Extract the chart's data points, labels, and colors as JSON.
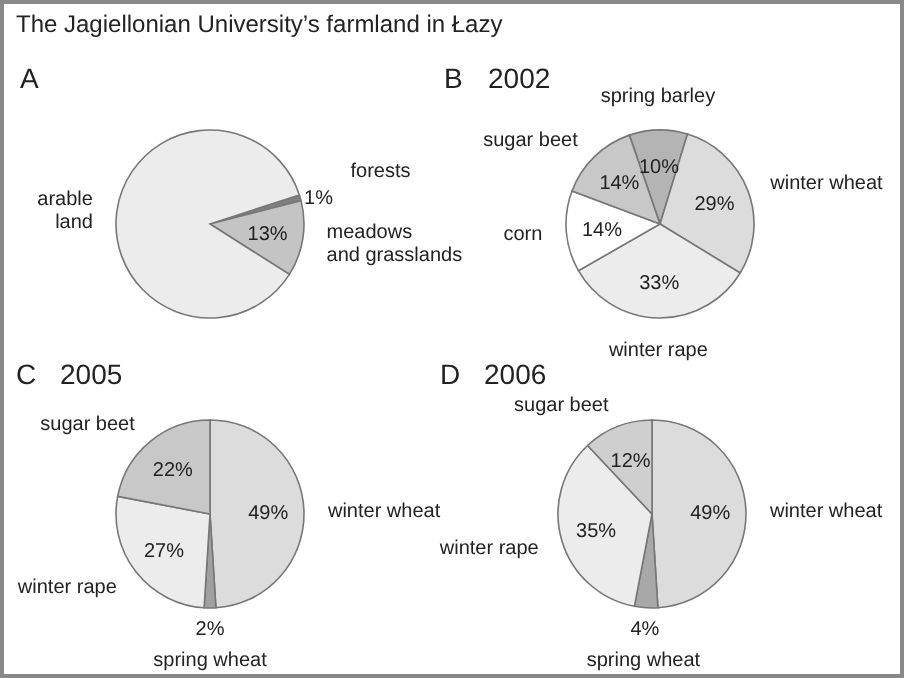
{
  "chart_data": [
    {
      "type": "pie",
      "title": "A",
      "annotations": [
        "The Jagiellonian University’s farmland  in Łazy"
      ],
      "categories": [
        "forests",
        "meadows and grasslands",
        "arable land"
      ],
      "values": [
        1,
        13,
        86
      ],
      "value_labels": [
        "1%",
        "13%",
        null
      ],
      "colors": [
        "#808080",
        "#c4c4c4",
        "#ececec"
      ]
    },
    {
      "type": "pie",
      "title": "B",
      "subtitle": "2002",
      "categories": [
        "spring barley",
        "winter wheat",
        "winter rape",
        "corn",
        "sugar beet"
      ],
      "values": [
        10,
        29,
        33,
        14,
        14
      ],
      "value_labels": [
        "10%",
        "29%",
        "33%",
        "14%",
        "14%"
      ],
      "colors": [
        "#b4b4b4",
        "#dcdcdc",
        "#ececec",
        "#ffffff",
        "#c8c8c8"
      ]
    },
    {
      "type": "pie",
      "title": "C",
      "subtitle": "2005",
      "categories": [
        "winter wheat",
        "spring wheat",
        "winter rape",
        "sugar beet"
      ],
      "values": [
        49,
        2,
        27,
        22
      ],
      "value_labels": [
        "49%",
        "2%",
        "27%",
        "22%"
      ],
      "colors": [
        "#dcdcdc",
        "#a0a0a0",
        "#ececec",
        "#c8c8c8"
      ]
    },
    {
      "type": "pie",
      "title": "D",
      "subtitle": "2006",
      "categories": [
        "winter wheat",
        "spring wheat",
        "winter rape",
        "sugar beet"
      ],
      "values": [
        49,
        4,
        35,
        12
      ],
      "value_labels": [
        "49%",
        "4%",
        "35%",
        "12%"
      ],
      "colors": [
        "#dcdcdc",
        "#a8a8a8",
        "#ececec",
        "#cfcfcf"
      ]
    }
  ]
}
